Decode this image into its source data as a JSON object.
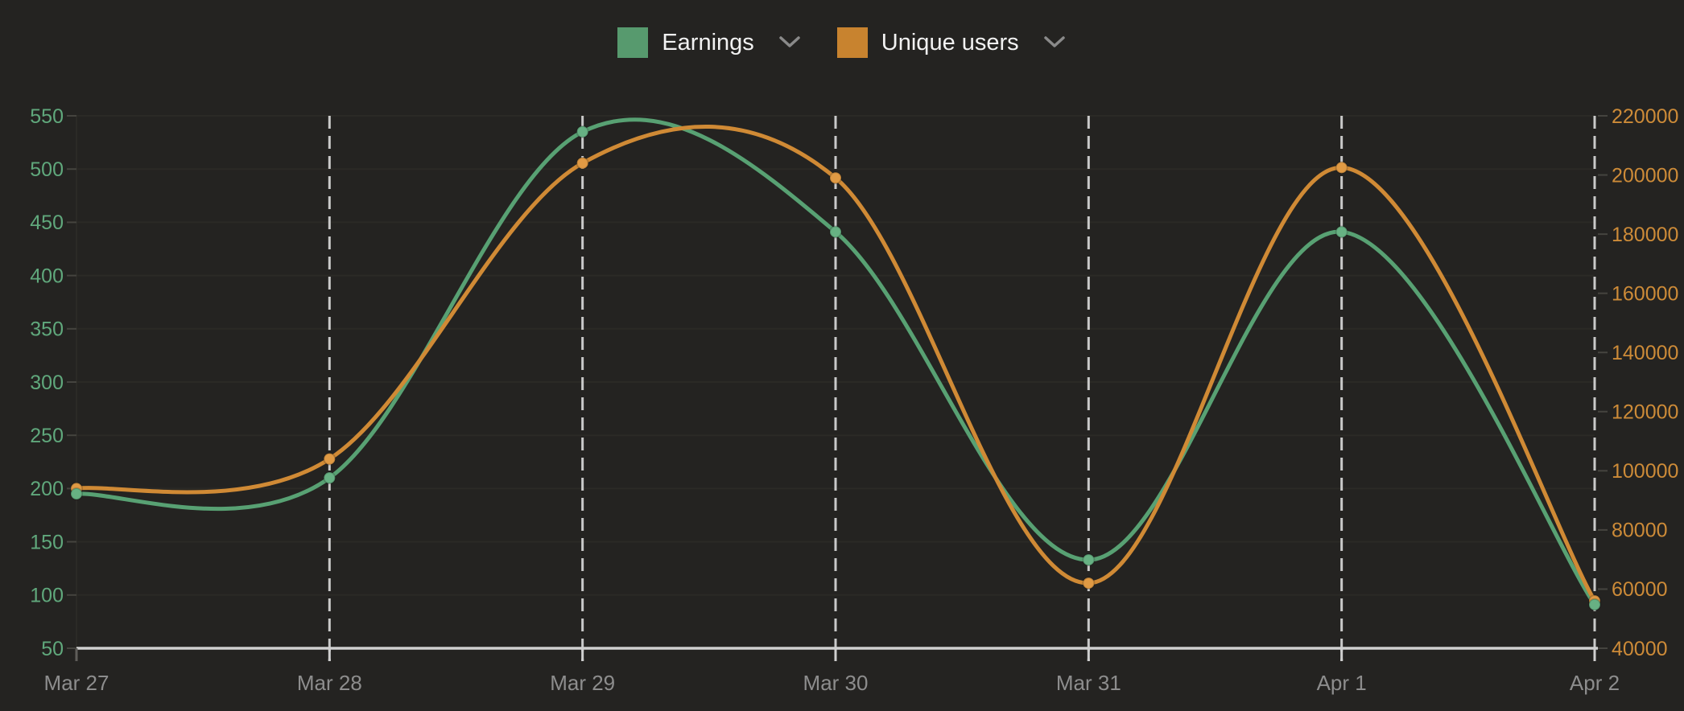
{
  "legend": {
    "items": [
      {
        "label": "Earnings",
        "color": "#579a6e"
      },
      {
        "label": "Unique users",
        "color": "#c8832f"
      }
    ]
  },
  "chart_data": {
    "type": "line",
    "categories": [
      "Mar 27",
      "Mar 28",
      "Mar 29",
      "Mar 30",
      "Mar 31",
      "Apr 1",
      "Apr 2"
    ],
    "series": [
      {
        "name": "Earnings",
        "axis": "left",
        "color": "#58a173",
        "dot_color": "#67b183",
        "values": [
          195,
          210,
          535,
          441,
          133,
          441,
          91
        ]
      },
      {
        "name": "Unique users",
        "axis": "right",
        "color": "#d08a35",
        "dot_color": "#e09a44",
        "values": [
          94000,
          104000,
          204000,
          199000,
          62000,
          202500,
          56000
        ]
      }
    ],
    "left_axis": {
      "min": 50,
      "max": 550,
      "step": 50,
      "color": "#60a87c"
    },
    "right_axis": {
      "min": 40000,
      "max": 220000,
      "step": 20000,
      "color": "#cd8b38"
    },
    "x_axis": {
      "label_color": "#8d8d8d",
      "line_color": "#cfcfcf"
    },
    "grid": {
      "h_color": "#2b2a26",
      "v_dash_color": "#dcdcdc",
      "tick_color": "#45443f"
    },
    "smoothing": "catmull-rom",
    "legend_position": "top-center"
  }
}
